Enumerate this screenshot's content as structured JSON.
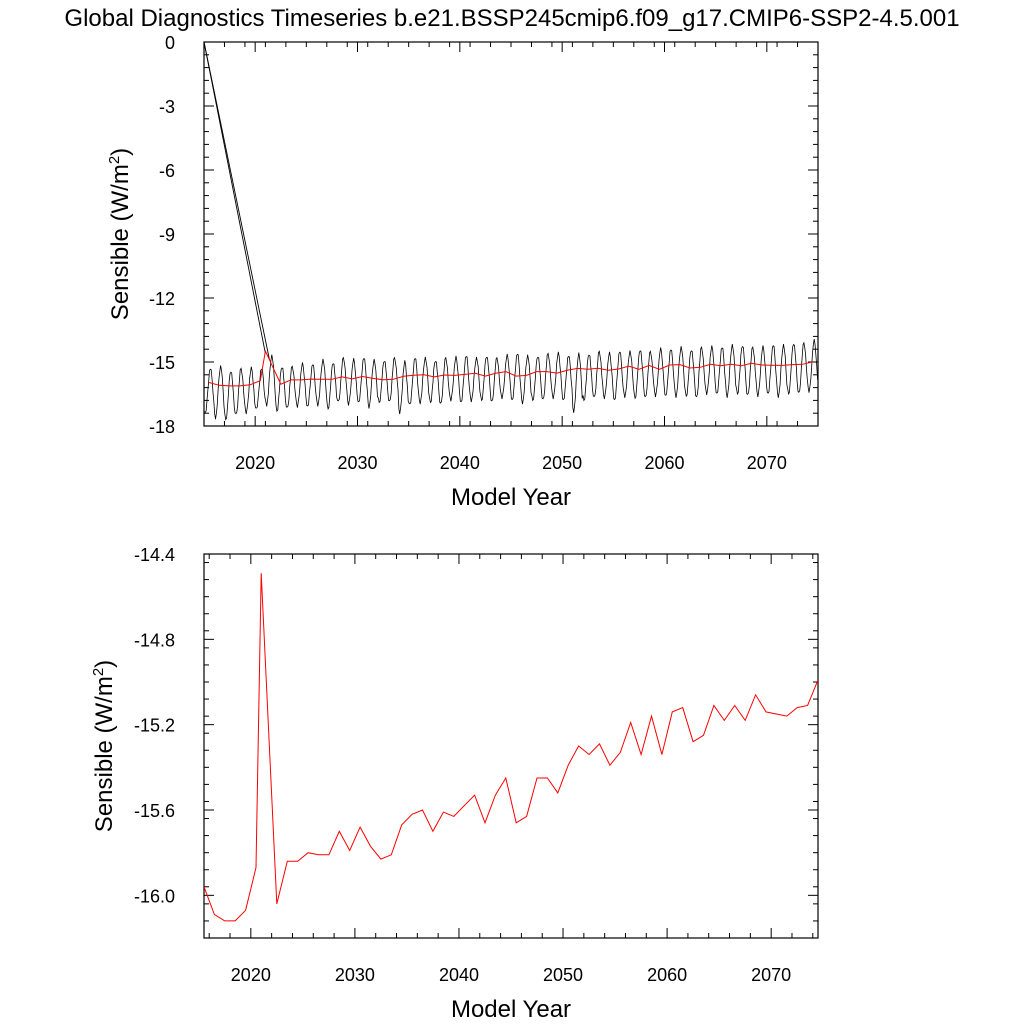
{
  "title": "Global Diagnostics Timeseries b.e21.BSSP245cmip6.f09_g17.CMIP6-SSP2-4.5.001",
  "colors": {
    "monthly": "#000000",
    "annual": "#ff0000",
    "axes": "#000000"
  },
  "chart_data": [
    {
      "type": "line",
      "xlabel": "Model Year",
      "ylabel": "Sensible (W/m",
      "ylabel_sup": "2",
      "ylabel_tail": ")",
      "xlim": [
        2015,
        2075
      ],
      "ylim": [
        -18,
        0
      ],
      "xticks": [
        2020,
        2030,
        2040,
        2050,
        2060,
        2070
      ],
      "xtick_labels": [
        "2020",
        "2030",
        "2040",
        "2050",
        "2060",
        "2070"
      ],
      "yticks": [
        0,
        -3,
        -6,
        -9,
        -12,
        -15,
        -18
      ],
      "ytick_labels": [
        "0",
        "-3",
        "-6",
        "-9",
        "-12",
        "-15",
        "-18"
      ],
      "grid": false,
      "series": [
        {
          "kind": "monthly",
          "color": "#000000",
          "description_seasonal_cycle": "monthly values oscillating with an annual cycle between about -17.5 and -15.0 early, rising to about -16.8 and -14.2 by 2074; initial value 0 at 2015.0 and a second spin-up line from 0 at 2015.0 to about -14.6 at 2021.3",
          "start_x": 2015.0,
          "spinup_points": [
            [
              2015.0,
              0.0
            ],
            [
              2021.0,
              -14.6
            ],
            [
              2015.0,
              0.0
            ],
            [
              2021.4,
              -14.9
            ]
          ],
          "annual_min_values": [
            -17.4,
            -17.6,
            -17.7,
            -17.5,
            -17.4,
            -17.2,
            -17.0,
            -17.3,
            -17.2,
            -17.1,
            -17.1,
            -17.0,
            -17.2,
            -16.9,
            -17.0,
            -16.9,
            -17.1,
            -16.9,
            -16.9,
            -17.4,
            -17.0,
            -16.9,
            -16.9,
            -17.0,
            -16.8,
            -16.9,
            -16.8,
            -16.8,
            -16.9,
            -16.7,
            -16.8,
            -16.9,
            -16.8,
            -16.8,
            -16.7,
            -16.8,
            -17.3,
            -16.8,
            -16.7,
            -16.7,
            -16.8,
            -16.6,
            -16.7,
            -16.7,
            -16.6,
            -16.6,
            -16.6,
            -16.6,
            -16.7,
            -16.5,
            -16.5,
            -16.6,
            -16.5,
            -16.6,
            -16.6,
            -16.5,
            -16.6,
            -16.5,
            -16.5,
            -16.4
          ],
          "annual_max_values": [
            -15.3,
            -15.2,
            -15.4,
            -15.3,
            -15.3,
            -15.3,
            -14.7,
            -15.2,
            -15.2,
            -15.1,
            -15.1,
            -14.9,
            -15.0,
            -14.8,
            -14.9,
            -14.8,
            -14.9,
            -14.9,
            -14.8,
            -15.0,
            -14.8,
            -14.8,
            -14.9,
            -14.8,
            -14.8,
            -14.7,
            -14.8,
            -14.7,
            -14.8,
            -14.7,
            -14.6,
            -14.7,
            -14.7,
            -14.6,
            -14.6,
            -14.7,
            -14.6,
            -14.6,
            -14.5,
            -14.6,
            -14.5,
            -14.5,
            -14.4,
            -14.5,
            -14.4,
            -14.4,
            -14.3,
            -14.4,
            -14.3,
            -14.3,
            -14.3,
            -14.2,
            -14.2,
            -14.3,
            -14.3,
            -14.2,
            -14.2,
            -14.1,
            -14.1,
            -14.0
          ]
        },
        {
          "kind": "annual",
          "color": "#ff0000",
          "x": [
            2015.5,
            2016.5,
            2017.5,
            2018.5,
            2019.5,
            2020.5,
            2021.0,
            2022.5,
            2023.5,
            2024.5,
            2025.5,
            2026.5,
            2027.5,
            2028.5,
            2029.5,
            2030.5,
            2031.5,
            2032.5,
            2033.5,
            2034.5,
            2035.5,
            2036.5,
            2037.5,
            2038.5,
            2039.5,
            2040.5,
            2041.5,
            2042.5,
            2043.5,
            2044.5,
            2045.5,
            2046.5,
            2047.5,
            2048.5,
            2049.5,
            2050.5,
            2051.5,
            2052.5,
            2053.5,
            2054.5,
            2055.5,
            2056.5,
            2057.5,
            2058.5,
            2059.5,
            2060.5,
            2061.5,
            2062.5,
            2063.5,
            2064.5,
            2065.5,
            2066.5,
            2067.5,
            2068.5,
            2069.5,
            2070.5,
            2071.5,
            2072.5,
            2073.5,
            2074.5
          ],
          "values": [
            -15.96,
            -16.09,
            -16.12,
            -16.12,
            -16.07,
            -15.87,
            -14.49,
            -16.04,
            -15.84,
            -15.84,
            -15.8,
            -15.81,
            -15.81,
            -15.7,
            -15.79,
            -15.68,
            -15.77,
            -15.83,
            -15.81,
            -15.67,
            -15.62,
            -15.6,
            -15.7,
            -15.61,
            -15.63,
            -15.58,
            -15.53,
            -15.66,
            -15.53,
            -15.45,
            -15.66,
            -15.63,
            -15.45,
            -15.45,
            -15.52,
            -15.39,
            -15.3,
            -15.34,
            -15.29,
            -15.39,
            -15.33,
            -15.19,
            -15.34,
            -15.16,
            -15.34,
            -15.14,
            -15.12,
            -15.28,
            -15.25,
            -15.11,
            -15.18,
            -15.11,
            -15.18,
            -15.06,
            -15.14,
            -15.15,
            -15.16,
            -15.12,
            -15.11,
            -14.99
          ]
        }
      ]
    },
    {
      "type": "line",
      "xlabel": "Model Year",
      "ylabel": "Sensible (W/m",
      "ylabel_sup": "2",
      "ylabel_tail": ")",
      "xlim": [
        2015.5,
        2074.5
      ],
      "ylim": [
        -16.2,
        -14.4
      ],
      "xticks": [
        2020,
        2030,
        2040,
        2050,
        2060,
        2070
      ],
      "xtick_labels": [
        "2020",
        "2030",
        "2040",
        "2050",
        "2060",
        "2070"
      ],
      "yticks": [
        -14.4,
        -14.8,
        -15.2,
        -15.6,
        -16.0
      ],
      "ytick_labels": [
        "-14.4",
        "-14.8",
        "-15.2",
        "-15.6",
        "-16.0"
      ],
      "grid": false,
      "series": [
        {
          "kind": "annual",
          "color": "#ff0000",
          "x": [
            2015.5,
            2016.5,
            2017.5,
            2018.5,
            2019.5,
            2020.5,
            2021.0,
            2022.5,
            2023.5,
            2024.5,
            2025.5,
            2026.5,
            2027.5,
            2028.5,
            2029.5,
            2030.5,
            2031.5,
            2032.5,
            2033.5,
            2034.5,
            2035.5,
            2036.5,
            2037.5,
            2038.5,
            2039.5,
            2040.5,
            2041.5,
            2042.5,
            2043.5,
            2044.5,
            2045.5,
            2046.5,
            2047.5,
            2048.5,
            2049.5,
            2050.5,
            2051.5,
            2052.5,
            2053.5,
            2054.5,
            2055.5,
            2056.5,
            2057.5,
            2058.5,
            2059.5,
            2060.5,
            2061.5,
            2062.5,
            2063.5,
            2064.5,
            2065.5,
            2066.5,
            2067.5,
            2068.5,
            2069.5,
            2070.5,
            2071.5,
            2072.5,
            2073.5,
            2074.5
          ],
          "values": [
            -15.96,
            -16.09,
            -16.12,
            -16.12,
            -16.07,
            -15.87,
            -14.49,
            -16.04,
            -15.84,
            -15.84,
            -15.8,
            -15.81,
            -15.81,
            -15.7,
            -15.79,
            -15.68,
            -15.77,
            -15.83,
            -15.81,
            -15.67,
            -15.62,
            -15.6,
            -15.7,
            -15.61,
            -15.63,
            -15.58,
            -15.53,
            -15.66,
            -15.53,
            -15.45,
            -15.66,
            -15.63,
            -15.45,
            -15.45,
            -15.52,
            -15.39,
            -15.3,
            -15.34,
            -15.29,
            -15.39,
            -15.33,
            -15.19,
            -15.34,
            -15.16,
            -15.34,
            -15.14,
            -15.12,
            -15.28,
            -15.25,
            -15.11,
            -15.18,
            -15.11,
            -15.18,
            -15.06,
            -15.14,
            -15.15,
            -15.16,
            -15.12,
            -15.11,
            -14.99
          ]
        }
      ]
    }
  ]
}
